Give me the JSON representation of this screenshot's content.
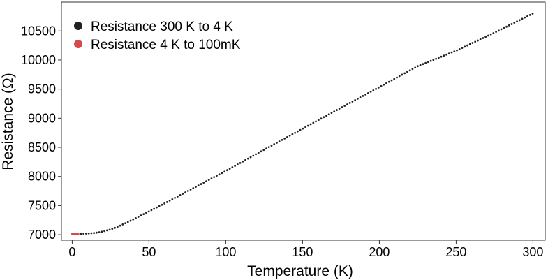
{
  "chart_data": {
    "type": "scatter",
    "title": "",
    "xlabel": "Temperature (K)",
    "ylabel": "Resistance (Ω)",
    "xlim": [
      -7,
      308
    ],
    "ylim": [
      6905,
      10995
    ],
    "xticks": [
      0,
      50,
      100,
      150,
      200,
      250,
      300
    ],
    "yticks": [
      7000,
      7500,
      8000,
      8500,
      9000,
      9500,
      10000,
      10500
    ],
    "grid": false,
    "legend_position": "top-left",
    "series": [
      {
        "name": "Resistance 300 K to 4 K",
        "color": "#222222",
        "x_range": [
          4,
          300
        ],
        "points": [
          [
            4,
            7014
          ],
          [
            10,
            7020
          ],
          [
            15,
            7030
          ],
          [
            20,
            7055
          ],
          [
            25,
            7090
          ],
          [
            30,
            7140
          ],
          [
            40,
            7265
          ],
          [
            50,
            7400
          ],
          [
            60,
            7535
          ],
          [
            70,
            7675
          ],
          [
            80,
            7815
          ],
          [
            90,
            7955
          ],
          [
            100,
            8095
          ],
          [
            125,
            8460
          ],
          [
            150,
            8820
          ],
          [
            175,
            9180
          ],
          [
            200,
            9535
          ],
          [
            225,
            9895
          ],
          [
            250,
            10160
          ],
          [
            275,
            10470
          ],
          [
            300,
            10800
          ]
        ]
      },
      {
        "name": "Resistance 4 K to 100mK",
        "color": "#d94848",
        "x_range": [
          0.1,
          4
        ],
        "points": [
          [
            0.1,
            7012
          ],
          [
            1,
            7012
          ],
          [
            2,
            7013
          ],
          [
            3,
            7013
          ],
          [
            4,
            7014
          ]
        ]
      }
    ]
  }
}
